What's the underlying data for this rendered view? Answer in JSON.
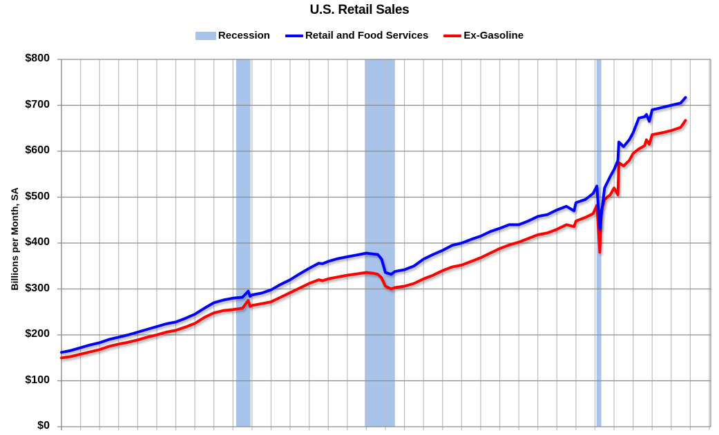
{
  "chart_data": {
    "type": "line",
    "title": "U.S. Retail Sales",
    "xlabel": "",
    "ylabel": "Billions per Month, SA",
    "ylim": [
      0,
      800
    ],
    "xlim": [
      1992,
      2026
    ],
    "grid": {
      "horizontal": true,
      "vertical": true
    },
    "legend_position": "top",
    "y_ticks": [
      "$0",
      "$100",
      "$200",
      "$300",
      "$400",
      "$500",
      "$600",
      "$700",
      "$800"
    ],
    "y_tick_values": [
      0,
      100,
      200,
      300,
      400,
      500,
      600,
      700,
      800
    ],
    "x_tick_labels_visible": false,
    "legend": [
      {
        "label": "Recession",
        "type": "area",
        "color": "#a9c4ea"
      },
      {
        "label": "Retail and Food Services",
        "type": "line",
        "color": "#0000ff"
      },
      {
        "label": "Ex-Gasoline",
        "type": "line",
        "color": "#ff0000"
      }
    ],
    "recessions": [
      {
        "start": 2001.17,
        "end": 2001.92
      },
      {
        "start": 2007.92,
        "end": 2009.5
      },
      {
        "start": 2020.08,
        "end": 2020.33
      }
    ],
    "series": [
      {
        "name": "Retail and Food Services",
        "color": "#0000ff",
        "x": [
          1992.0,
          1992.5,
          1993.0,
          1993.5,
          1994.0,
          1994.5,
          1995.0,
          1995.5,
          1996.0,
          1996.5,
          1997.0,
          1997.5,
          1998.0,
          1998.5,
          1999.0,
          1999.5,
          2000.0,
          2000.5,
          2001.0,
          2001.5,
          2001.8,
          2001.9,
          2002.0,
          2002.5,
          2003.0,
          2003.5,
          2004.0,
          2004.5,
          2005.0,
          2005.5,
          2005.7,
          2006.0,
          2006.5,
          2007.0,
          2007.5,
          2008.0,
          2008.4,
          2008.6,
          2008.8,
          2009.0,
          2009.3,
          2009.5,
          2010.0,
          2010.5,
          2011.0,
          2011.5,
          2012.0,
          2012.5,
          2013.0,
          2013.5,
          2014.0,
          2014.5,
          2015.0,
          2015.5,
          2016.0,
          2016.5,
          2017.0,
          2017.5,
          2018.0,
          2018.5,
          2018.9,
          2019.0,
          2019.5,
          2019.9,
          2020.1,
          2020.25,
          2020.33,
          2020.5,
          2020.8,
          2021.0,
          2021.2,
          2021.25,
          2021.5,
          2021.8,
          2022.0,
          2022.3,
          2022.6,
          2022.7,
          2022.85,
          2023.0,
          2023.5,
          2024.0,
          2024.5,
          2024.75
        ],
        "values": [
          162,
          166,
          172,
          178,
          183,
          190,
          195,
          200,
          206,
          212,
          218,
          224,
          228,
          236,
          245,
          258,
          270,
          276,
          280,
          282,
          295,
          284,
          287,
          291,
          298,
          310,
          320,
          333,
          345,
          356,
          355,
          360,
          366,
          370,
          374,
          378,
          376,
          375,
          365,
          336,
          332,
          338,
          342,
          350,
          365,
          375,
          384,
          395,
          400,
          408,
          415,
          425,
          432,
          440,
          440,
          448,
          458,
          462,
          472,
          480,
          470,
          488,
          495,
          508,
          524,
          430,
          460,
          520,
          545,
          560,
          580,
          620,
          610,
          625,
          640,
          672,
          675,
          680,
          665,
          690,
          695,
          700,
          705,
          717
        ]
      },
      {
        "name": "Ex-Gasoline",
        "color": "#ff0000",
        "x": [
          1992.0,
          1992.5,
          1993.0,
          1993.5,
          1994.0,
          1994.5,
          1995.0,
          1995.5,
          1996.0,
          1996.5,
          1997.0,
          1997.5,
          1998.0,
          1998.5,
          1999.0,
          1999.5,
          2000.0,
          2000.5,
          2001.0,
          2001.5,
          2001.8,
          2001.9,
          2002.0,
          2002.5,
          2003.0,
          2003.5,
          2004.0,
          2004.5,
          2005.0,
          2005.5,
          2005.7,
          2006.0,
          2006.5,
          2007.0,
          2007.5,
          2008.0,
          2008.4,
          2008.6,
          2008.8,
          2009.0,
          2009.3,
          2009.5,
          2010.0,
          2010.5,
          2011.0,
          2011.5,
          2012.0,
          2012.5,
          2013.0,
          2013.5,
          2014.0,
          2014.5,
          2015.0,
          2015.5,
          2016.0,
          2016.5,
          2017.0,
          2017.5,
          2018.0,
          2018.5,
          2018.9,
          2019.0,
          2019.5,
          2019.9,
          2020.1,
          2020.25,
          2020.33,
          2020.5,
          2020.8,
          2021.0,
          2021.2,
          2021.25,
          2021.5,
          2021.8,
          2022.0,
          2022.3,
          2022.6,
          2022.7,
          2022.85,
          2023.0,
          2023.5,
          2024.0,
          2024.5,
          2024.75
        ],
        "values": [
          150,
          153,
          158,
          163,
          168,
          175,
          180,
          184,
          189,
          195,
          200,
          206,
          210,
          217,
          225,
          238,
          248,
          253,
          255,
          258,
          275,
          262,
          264,
          268,
          272,
          282,
          292,
          302,
          312,
          320,
          318,
          322,
          326,
          330,
          333,
          336,
          334,
          332,
          324,
          306,
          300,
          303,
          306,
          312,
          322,
          330,
          340,
          348,
          352,
          360,
          368,
          378,
          388,
          396,
          402,
          410,
          418,
          422,
          430,
          440,
          436,
          448,
          456,
          464,
          482,
          380,
          470,
          495,
          505,
          520,
          505,
          575,
          568,
          580,
          595,
          605,
          612,
          625,
          615,
          636,
          640,
          645,
          652,
          667
        ]
      }
    ]
  }
}
